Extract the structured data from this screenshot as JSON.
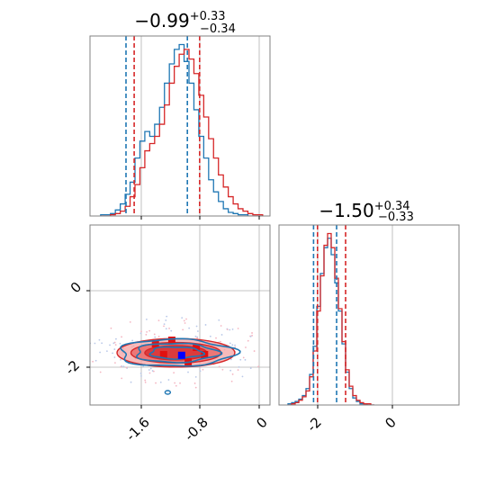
{
  "colors": {
    "series_a": "#1f77b4",
    "series_b": "#d62728",
    "frame": "#808080",
    "grid": "#b0b0b0",
    "peak_marker": "#0000ff"
  },
  "chart_data": [
    {
      "panel": "top-left",
      "type": "line",
      "subtype": "histogram-step",
      "title": "−0.99",
      "title_plus": "+0.33",
      "title_minus": "−0.34",
      "xlim": [
        -2.0,
        0.2
      ],
      "grid": true,
      "tick_labels_shown": false,
      "x": [
        -1.84,
        -1.78,
        -1.72,
        -1.66,
        -1.6,
        -1.54,
        -1.48,
        -1.42,
        -1.36,
        -1.3,
        -1.24,
        -1.18,
        -1.12,
        -1.06,
        -1.0,
        -0.94,
        -0.88,
        -0.82,
        -0.76,
        -0.7,
        -0.64,
        -0.58,
        -0.52,
        -0.46,
        -0.4,
        -0.34,
        -0.28,
        -0.22,
        -0.16,
        -0.1,
        -0.04,
        0.02,
        0.08
      ],
      "series": [
        {
          "values": [
            1,
            1,
            2,
            5,
            10,
            18,
            28,
            48,
            62,
            70,
            66,
            76,
            90,
            110,
            126,
            138,
            142,
            128,
            110,
            88,
            66,
            48,
            30,
            20,
            12,
            6,
            3,
            2,
            1,
            1,
            0,
            0,
            0
          ]
        },
        {
          "values": [
            0,
            0,
            1,
            2,
            4,
            8,
            16,
            26,
            40,
            54,
            60,
            66,
            76,
            92,
            110,
            124,
            134,
            138,
            130,
            118,
            100,
            82,
            64,
            48,
            34,
            24,
            16,
            10,
            6,
            4,
            2,
            1,
            1
          ]
        }
      ],
      "credible_lines": [
        {
          "series": 0,
          "x": [
            -1.56,
            -0.81
          ]
        },
        {
          "series": 1,
          "x": [
            -1.46,
            -0.66
          ]
        }
      ]
    },
    {
      "panel": "bottom-right",
      "type": "line",
      "subtype": "histogram-step",
      "title": "−1.50",
      "title_plus": "+0.34",
      "title_minus": "−0.33",
      "xlim": [
        -3.0,
        2.0
      ],
      "grid": true,
      "x_ticks": [
        -2,
        0
      ],
      "x": [
        -2.7,
        -2.6,
        -2.5,
        -2.4,
        -2.3,
        -2.2,
        -2.1,
        -2.0,
        -1.9,
        -1.8,
        -1.7,
        -1.6,
        -1.5,
        -1.4,
        -1.3,
        -1.2,
        -1.1,
        -1.0,
        -0.9,
        -0.8,
        -0.7,
        -0.6,
        -0.5,
        -0.4
      ],
      "series": [
        {
          "values": [
            1,
            2,
            3,
            5,
            8,
            14,
            26,
            50,
            84,
            112,
            134,
            142,
            128,
            104,
            80,
            52,
            28,
            14,
            6,
            3,
            1,
            1,
            0,
            0
          ]
        },
        {
          "values": [
            0,
            1,
            2,
            4,
            7,
            12,
            24,
            46,
            80,
            110,
            136,
            146,
            134,
            108,
            82,
            54,
            30,
            16,
            8,
            4,
            2,
            1,
            1,
            0
          ]
        }
      ],
      "credible_lines": [
        {
          "series": 0,
          "x": [
            -2.04,
            -1.4
          ]
        },
        {
          "series": 1,
          "x": [
            -1.93,
            -1.15
          ]
        }
      ]
    },
    {
      "panel": "bottom-left",
      "type": "scatter",
      "subtype": "2d-density-contours",
      "xlim": [
        -2.0,
        0.2
      ],
      "ylim": [
        -3.0,
        2.0
      ],
      "grid": true,
      "x_ticks": [
        -1.6,
        -0.8,
        0.0
      ],
      "y_ticks": [
        0,
        -2
      ],
      "density_center": [
        -0.95,
        -1.55
      ],
      "contours": [
        {
          "series": 1,
          "level": 1,
          "rx": 0.72,
          "ry": 0.72
        },
        {
          "series": 1,
          "level": 2,
          "rx": 0.55,
          "ry": 0.52
        },
        {
          "series": 1,
          "level": 3,
          "rx": 0.38,
          "ry": 0.36
        },
        {
          "series": 0,
          "level": 1,
          "rx": 0.7,
          "ry": 0.68
        },
        {
          "series": 0,
          "level": 2,
          "rx": 0.5,
          "ry": 0.48
        },
        {
          "series": 0,
          "level": 3,
          "rx": 0.32,
          "ry": 0.3
        }
      ],
      "peak_cell": [
        -0.88,
        -1.62
      ]
    }
  ]
}
